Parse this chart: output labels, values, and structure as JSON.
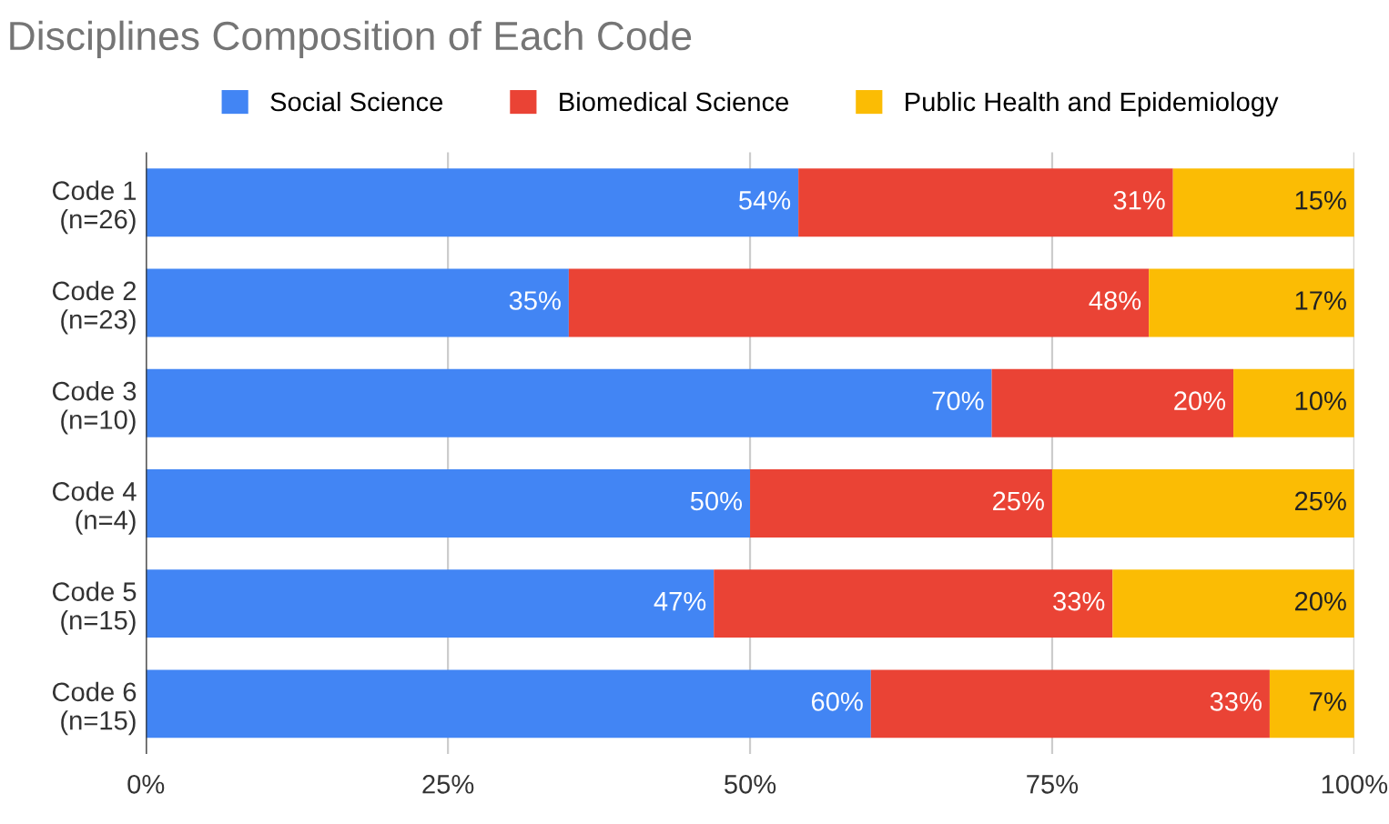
{
  "chart_data": {
    "type": "bar",
    "orientation": "horizontal",
    "stacked": true,
    "title": "Disciplines Composition of Each Code",
    "categories": [
      "Code 1\n(n=26)",
      "Code 2\n(n=23)",
      "Code 3\n(n=10)",
      "Code 4\n(n=4)",
      "Code 5\n(n=15)",
      "Code 6\n(n=15)"
    ],
    "series": [
      {
        "name": "Social Science",
        "color": "#4285f4",
        "values": [
          54,
          35,
          70,
          50,
          47,
          60
        ],
        "value_labels": [
          "54%",
          "35%",
          "70%",
          "50%",
          "47%",
          "60%"
        ]
      },
      {
        "name": "Biomedical Science",
        "color": "#ea4335",
        "values": [
          31,
          48,
          20,
          25,
          33,
          33
        ],
        "value_labels": [
          "31%",
          "48%",
          "20%",
          "25%",
          "33%",
          "33%"
        ]
      },
      {
        "name": "Public Health and Epidemiology",
        "color": "#fbbc04",
        "values": [
          15,
          17,
          10,
          25,
          20,
          7
        ],
        "value_labels": [
          "15%",
          "17%",
          "10%",
          "25%",
          "20%",
          "7%"
        ]
      }
    ],
    "xlim": [
      0,
      100
    ],
    "xticks": [
      {
        "value": 0,
        "label": "0%"
      },
      {
        "value": 25,
        "label": "25%"
      },
      {
        "value": 50,
        "label": "50%"
      },
      {
        "value": 75,
        "label": "75%"
      },
      {
        "value": 100,
        "label": "100%"
      }
    ],
    "grid": "x",
    "legend": "top"
  }
}
